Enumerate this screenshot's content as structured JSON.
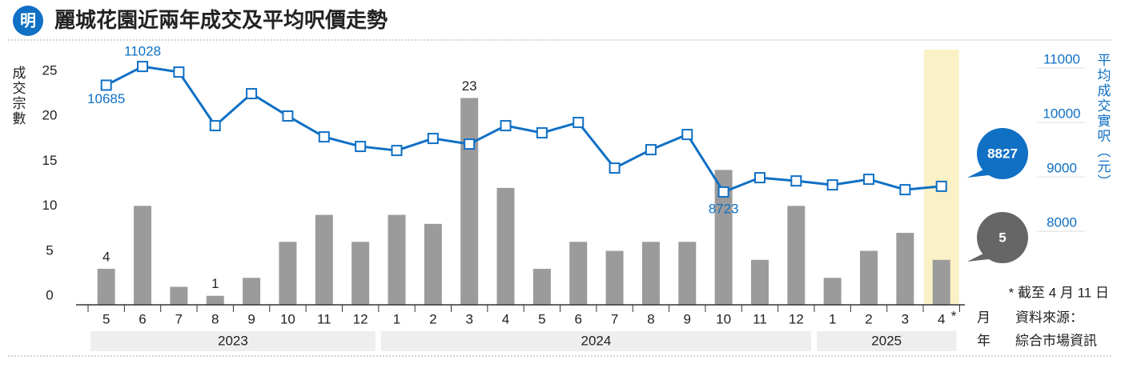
{
  "chart_data": {
    "type": "bar+line",
    "title": "麗城花園近兩年成交及平均呎價走勢",
    "logo": "明",
    "y_label": "成交宗數",
    "y2_label": "平均成交實呎（元）",
    "x_label_month": "月",
    "x_label_year": "年",
    "source_label": "資料來源：",
    "source": "綜合市場資訊",
    "note": "* 截至 4 月 11 日",
    "note_marker": "*",
    "categories": [
      "5",
      "6",
      "7",
      "8",
      "9",
      "10",
      "11",
      "12",
      "1",
      "2",
      "3",
      "4",
      "5",
      "6",
      "7",
      "8",
      "9",
      "10",
      "11",
      "12",
      "1",
      "2",
      "3",
      "4"
    ],
    "years": [
      "2023",
      "2024",
      "2025"
    ],
    "series": [
      {
        "name": "成交宗數",
        "type": "bar",
        "color": "#9b9b9b",
        "values": [
          4,
          11,
          2,
          1,
          3,
          7,
          10,
          7,
          10,
          9,
          23,
          13,
          4,
          7,
          6,
          7,
          7,
          15,
          5,
          11,
          3,
          6,
          8,
          5
        ]
      },
      {
        "name": "平均成交實呎",
        "type": "line",
        "axis": "y2",
        "color": "#1070c4",
        "values": [
          10685,
          11028,
          10926,
          9941,
          10529,
          10118,
          9735,
          9559,
          9485,
          9706,
          9603,
          9941,
          9809,
          10000,
          9162,
          9500,
          9779,
          8723,
          8985,
          8926,
          8853,
          8956,
          8765,
          8827
        ]
      }
    ],
    "ylim": [
      0,
      25
    ],
    "yticks": [
      0,
      5,
      10,
      15,
      20,
      25
    ],
    "y2lim": [
      6650,
      10780
    ],
    "y2ticks": [
      8000,
      9000,
      10000,
      11000
    ],
    "highlight_color": "#fbf1c7"
  }
}
